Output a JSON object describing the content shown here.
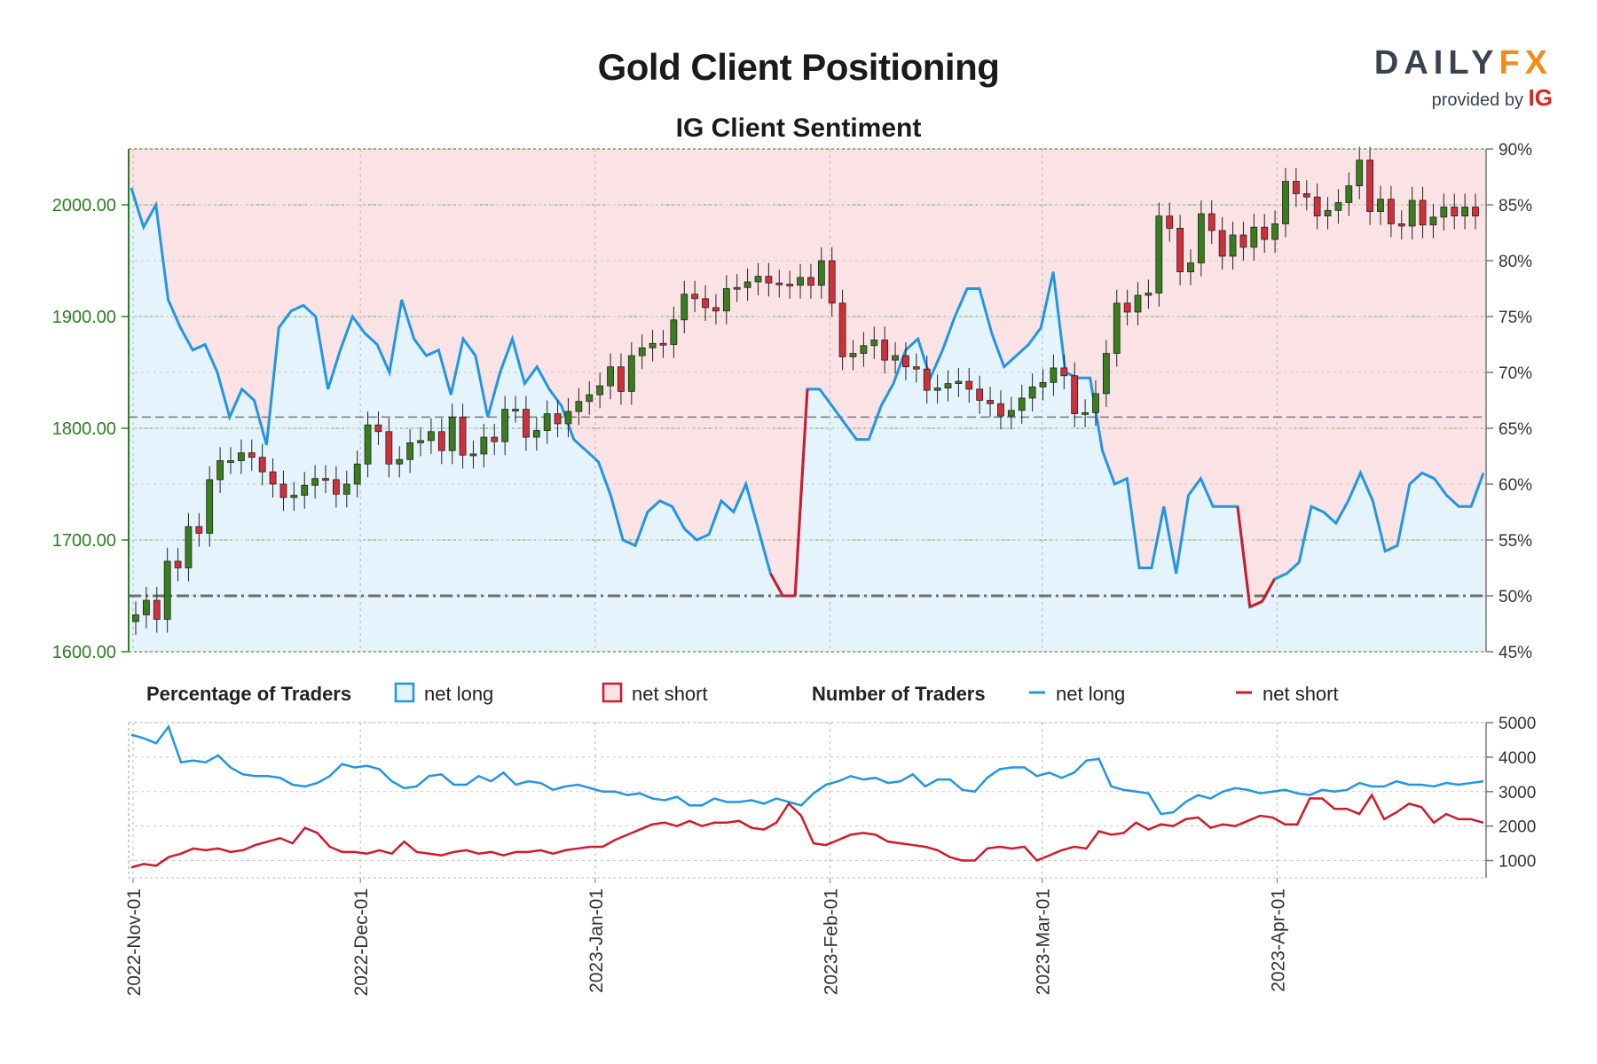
{
  "header": {
    "title": "Gold Client Positioning",
    "subtitle": "IG Client Sentiment",
    "logo_brand_a": "DAILY",
    "logo_brand_b": "FX",
    "logo_provided": "provided by",
    "logo_ig": "IG"
  },
  "legend": {
    "pct_title": "Percentage of Traders",
    "pct_long": "net long",
    "pct_short": "net short",
    "num_title": "Number of Traders",
    "num_long": "net long",
    "num_short": "net short"
  },
  "colors": {
    "net_long": "#2196e3",
    "net_short": "#d01a2b",
    "long_fill": "#e4f3fc",
    "short_fill": "#fbe3e5",
    "up_candle": "#3a7d1e",
    "down_candle": "#d32f3a",
    "axis_green": "#2e7d1f"
  },
  "chart_data": [
    {
      "type": "candlestick",
      "name": "Gold price (daily OHLC)",
      "ylim": [
        1600,
        2050
      ],
      "yticks": [
        "1600.00",
        "1700.00",
        "1800.00",
        "1900.00",
        "2000.00"
      ],
      "reference_line": 1810,
      "x_dates": [
        "2022-11-01",
        "2022-11-02",
        "2022-11-03",
        "2022-11-04",
        "2022-11-07",
        "2022-11-08",
        "2022-11-09",
        "2022-11-10",
        "2022-11-11",
        "2022-11-14",
        "2022-11-15",
        "2022-11-16",
        "2022-11-17",
        "2022-11-18",
        "2022-11-21",
        "2022-11-22",
        "2022-11-23",
        "2022-11-24",
        "2022-11-25",
        "2022-11-28",
        "2022-11-29",
        "2022-11-30",
        "2022-12-01",
        "2022-12-02",
        "2022-12-05",
        "2022-12-06",
        "2022-12-07",
        "2022-12-08",
        "2022-12-09",
        "2022-12-12",
        "2022-12-13",
        "2022-12-14",
        "2022-12-15",
        "2022-12-16",
        "2022-12-19",
        "2022-12-20",
        "2022-12-21",
        "2022-12-22",
        "2022-12-23",
        "2022-12-27",
        "2022-12-28",
        "2022-12-29",
        "2022-12-30",
        "2023-01-02",
        "2023-01-03",
        "2023-01-04",
        "2023-01-05",
        "2023-01-06",
        "2023-01-09",
        "2023-01-10",
        "2023-01-11",
        "2023-01-12",
        "2023-01-13",
        "2023-01-16",
        "2023-01-17",
        "2023-01-18",
        "2023-01-19",
        "2023-01-20",
        "2023-01-23",
        "2023-01-24",
        "2023-01-25",
        "2023-01-26",
        "2023-01-27",
        "2023-01-30",
        "2023-01-31",
        "2023-02-01",
        "2023-02-02",
        "2023-02-03",
        "2023-02-06",
        "2023-02-07",
        "2023-02-08",
        "2023-02-09",
        "2023-02-10",
        "2023-02-13",
        "2023-02-14",
        "2023-02-15",
        "2023-02-16",
        "2023-02-17",
        "2023-02-20",
        "2023-02-21",
        "2023-02-22",
        "2023-02-23",
        "2023-02-24",
        "2023-02-27",
        "2023-02-28",
        "2023-03-01",
        "2023-03-02",
        "2023-03-03",
        "2023-03-06",
        "2023-03-07",
        "2023-03-08",
        "2023-03-09",
        "2023-03-10",
        "2023-03-13",
        "2023-03-14",
        "2023-03-15",
        "2023-03-16",
        "2023-03-17",
        "2023-03-20",
        "2023-03-21",
        "2023-03-22",
        "2023-03-23",
        "2023-03-24",
        "2023-03-27",
        "2023-03-28",
        "2023-03-29",
        "2023-03-30",
        "2023-03-31",
        "2023-04-03",
        "2023-04-04",
        "2023-04-05",
        "2023-04-06",
        "2023-04-07",
        "2023-04-10",
        "2023-04-11",
        "2023-04-12",
        "2023-04-13",
        "2023-04-14",
        "2023-04-17",
        "2023-04-18",
        "2023-04-19",
        "2023-04-20",
        "2023-04-21",
        "2023-04-24",
        "2023-04-25",
        "2023-04-26",
        "2023-04-27",
        "2023-04-28"
      ],
      "close": [
        1633,
        1646,
        1629,
        1681,
        1675,
        1712,
        1706,
        1754,
        1771,
        1771,
        1778,
        1774,
        1761,
        1750,
        1738,
        1740,
        1749,
        1755,
        1754,
        1741,
        1750,
        1768,
        1803,
        1797,
        1768,
        1772,
        1787,
        1789,
        1797,
        1780,
        1810,
        1776,
        1777,
        1792,
        1788,
        1817,
        1817,
        1792,
        1798,
        1813,
        1804,
        1815,
        1824,
        1830,
        1838,
        1855,
        1833,
        1865,
        1872,
        1876,
        1875,
        1897,
        1920,
        1916,
        1908,
        1905,
        1925,
        1926,
        1931,
        1936,
        1930,
        1929,
        1928,
        1935,
        1928,
        1950,
        1912,
        1864,
        1867,
        1874,
        1879,
        1861,
        1865,
        1855,
        1853,
        1834,
        1836,
        1840,
        1842,
        1835,
        1825,
        1822,
        1811,
        1816,
        1827,
        1837,
        1841,
        1854,
        1847,
        1813,
        1814,
        1831,
        1867,
        1912,
        1904,
        1919,
        1921,
        1990,
        1979,
        1940,
        1948,
        1992,
        1977,
        1954,
        1973,
        1962,
        1980,
        1969,
        1983,
        2021,
        2010,
        2007,
        1990,
        1995,
        2002,
        2017,
        2040,
        1994,
        2005,
        1983,
        1981,
        2004,
        1982,
        1989,
        1998,
        1990,
        1998,
        1990
      ],
      "low_high_note": "whiskers drawn from close ±12"
    },
    {
      "type": "line",
      "name": "Percentage of traders net long",
      "ylim": [
        45,
        90
      ],
      "yticks": [
        "45%",
        "50%",
        "55%",
        "60%",
        "65%",
        "70%",
        "75%",
        "80%",
        "85%",
        "90%"
      ],
      "reference_line": 50,
      "values": [
        86.5,
        83,
        85,
        76.5,
        74,
        72,
        72.5,
        70,
        66,
        68.5,
        67.5,
        63.5,
        74,
        75.5,
        76,
        75,
        68.5,
        72,
        75,
        73.5,
        72.5,
        70,
        76.5,
        73,
        71.5,
        72,
        68,
        73,
        71.5,
        66,
        70,
        73,
        69,
        70.5,
        68.5,
        67,
        64,
        63,
        62,
        59,
        55,
        54.5,
        57.5,
        58.5,
        58,
        56,
        55,
        55.5,
        58.5,
        57.5,
        60,
        56,
        52,
        50,
        50,
        68.5,
        68.5,
        67,
        65.5,
        64,
        64,
        67,
        69,
        72,
        73,
        69.5,
        72,
        75,
        77.5,
        77.5,
        73.5,
        70.5,
        71.5,
        72.5,
        74,
        79,
        70,
        69.5,
        69.5,
        63,
        60,
        60.5,
        52.5,
        52.5,
        58,
        52,
        59,
        60.5,
        58,
        58,
        58,
        49,
        49.5,
        51.5,
        52,
        53,
        58,
        57.5,
        56.5,
        58.5,
        61,
        58.5,
        54,
        54.5,
        60,
        61,
        60.5,
        59,
        58,
        58,
        61
      ],
      "note": "net short = 100 - net long"
    },
    {
      "type": "line",
      "name": "Number of traders",
      "ylim": [
        500,
        5000
      ],
      "yticks": [
        "1000",
        "2000",
        "3000",
        "4000",
        "5000"
      ],
      "series": [
        {
          "name": "net long",
          "values": [
            4650,
            4550,
            4400,
            4880,
            3850,
            3900,
            3850,
            4050,
            3700,
            3500,
            3450,
            3450,
            3400,
            3200,
            3150,
            3250,
            3450,
            3800,
            3700,
            3750,
            3650,
            3300,
            3100,
            3150,
            3450,
            3500,
            3200,
            3200,
            3450,
            3300,
            3550,
            3200,
            3300,
            3250,
            3050,
            3150,
            3200,
            3100,
            3000,
            3000,
            2900,
            2950,
            2800,
            2750,
            2850,
            2600,
            2600,
            2800,
            2700,
            2700,
            2750,
            2650,
            2800,
            2700,
            2600,
            2950,
            3200,
            3300,
            3450,
            3350,
            3400,
            3250,
            3300,
            3500,
            3150,
            3350,
            3350,
            3050,
            3000,
            3400,
            3650,
            3700,
            3700,
            3450,
            3550,
            3400,
            3550,
            3900,
            3950,
            3150,
            3050,
            3000,
            2950,
            2350,
            2400,
            2700,
            2900,
            2800,
            3000,
            3100,
            3050,
            2950,
            3000,
            3050,
            2950,
            2900,
            3050,
            3000,
            3050,
            3250,
            3150,
            3150,
            3300,
            3200,
            3200,
            3150,
            3250,
            3200,
            3250,
            3300
          ],
          "x_positions_note": "evenly spaced over dates"
        },
        {
          "name": "net short",
          "values": [
            800,
            900,
            850,
            1100,
            1200,
            1350,
            1300,
            1350,
            1250,
            1300,
            1450,
            1550,
            1650,
            1500,
            1950,
            1800,
            1400,
            1250,
            1250,
            1200,
            1300,
            1200,
            1550,
            1250,
            1200,
            1150,
            1250,
            1300,
            1200,
            1250,
            1150,
            1250,
            1250,
            1300,
            1200,
            1300,
            1350,
            1400,
            1400,
            1600,
            1750,
            1900,
            2050,
            2100,
            2000,
            2150,
            2000,
            2100,
            2100,
            2150,
            1950,
            1900,
            2100,
            2650,
            2300,
            1500,
            1450,
            1600,
            1750,
            1800,
            1750,
            1550,
            1500,
            1450,
            1400,
            1300,
            1100,
            1000,
            1000,
            1350,
            1400,
            1350,
            1400,
            1000,
            1150,
            1300,
            1400,
            1350,
            1850,
            1750,
            1800,
            2100,
            1900,
            2050,
            2000,
            2200,
            2250,
            1950,
            2050,
            2000,
            2150,
            2300,
            2250,
            2050,
            2050,
            2800,
            2800,
            2500,
            2500,
            2350,
            2900,
            2200,
            2400,
            2650,
            2550,
            2100,
            2350,
            2200,
            2200,
            2100
          ]
        }
      ]
    }
  ],
  "x_axis": {
    "tick_labels": [
      "2022-Nov-01",
      "2022-Dec-01",
      "2023-Jan-01",
      "2023-Feb-01",
      "2023-Mar-01",
      "2023-Apr-01"
    ]
  }
}
